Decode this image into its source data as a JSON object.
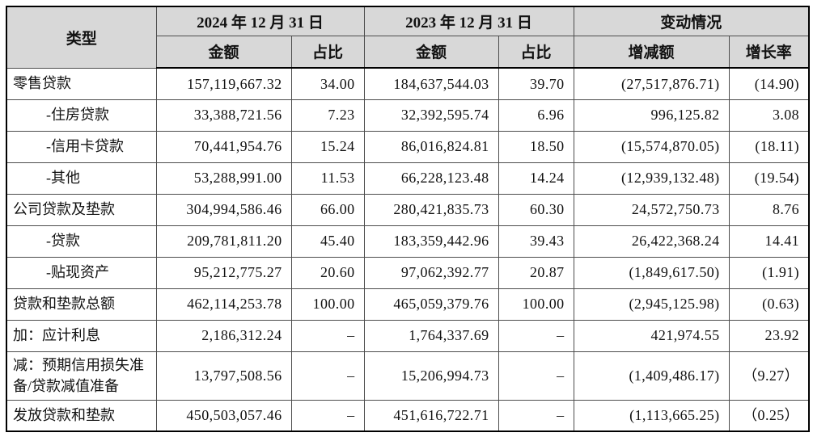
{
  "colors": {
    "header_bg": "#d8d8d8",
    "border_outer": "#000000",
    "border_inner": "#4d4d4d",
    "text": "#111111",
    "body_bg": "#ffffff"
  },
  "table": {
    "headers": {
      "type": "类型",
      "period_2024": "2024 年 12 月 31 日",
      "period_2023": "2023 年 12 月 31 日",
      "change_group": "变动情况",
      "amount": "金额",
      "ratio": "占比",
      "change_amount": "增减额",
      "growth_rate": "增长率"
    },
    "rows": [
      {
        "label": "零售贷款",
        "indent": false,
        "amount_2024": "157,119,667.32",
        "ratio_2024": "34.00",
        "amount_2023": "184,637,544.03",
        "ratio_2023": "39.70",
        "change_amount": "(27,517,876.71)",
        "growth_rate": "(14.90)"
      },
      {
        "label": "-住房贷款",
        "indent": true,
        "amount_2024": "33,388,721.56",
        "ratio_2024": "7.23",
        "amount_2023": "32,392,595.74",
        "ratio_2023": "6.96",
        "change_amount": "996,125.82",
        "growth_rate": "3.08"
      },
      {
        "label": "-信用卡贷款",
        "indent": true,
        "amount_2024": "70,441,954.76",
        "ratio_2024": "15.24",
        "amount_2023": "86,016,824.81",
        "ratio_2023": "18.50",
        "change_amount": "(15,574,870.05)",
        "growth_rate": "(18.11)"
      },
      {
        "label": "-其他",
        "indent": true,
        "amount_2024": "53,288,991.00",
        "ratio_2024": "11.53",
        "amount_2023": "66,228,123.48",
        "ratio_2023": "14.24",
        "change_amount": "(12,939,132.48)",
        "growth_rate": "(19.54)"
      },
      {
        "label": "公司贷款及垫款",
        "indent": false,
        "amount_2024": "304,994,586.46",
        "ratio_2024": "66.00",
        "amount_2023": "280,421,835.73",
        "ratio_2023": "60.30",
        "change_amount": "24,572,750.73",
        "growth_rate": "8.76"
      },
      {
        "label": "-贷款",
        "indent": true,
        "amount_2024": "209,781,811.20",
        "ratio_2024": "45.40",
        "amount_2023": "183,359,442.96",
        "ratio_2023": "39.43",
        "change_amount": "26,422,368.24",
        "growth_rate": "14.41"
      },
      {
        "label": "-贴现资产",
        "indent": true,
        "amount_2024": "95,212,775.27",
        "ratio_2024": "20.60",
        "amount_2023": "97,062,392.77",
        "ratio_2023": "20.87",
        "change_amount": "(1,849,617.50)",
        "growth_rate": "(1.91)"
      },
      {
        "label": "贷款和垫款总额",
        "indent": false,
        "amount_2024": "462,114,253.78",
        "ratio_2024": "100.00",
        "amount_2023": "465,059,379.76",
        "ratio_2023": "100.00",
        "change_amount": "(2,945,125.98)",
        "growth_rate": "(0.63)"
      },
      {
        "label": "加：应计利息",
        "indent": false,
        "amount_2024": "2,186,312.24",
        "ratio_2024": "–",
        "amount_2023": "1,764,337.69",
        "ratio_2023": "–",
        "change_amount": "421,974.55",
        "growth_rate": "23.92"
      },
      {
        "label": "减：预期信用损失准备/贷款减值准备",
        "indent": false,
        "tall": true,
        "amount_2024": "13,797,508.56",
        "ratio_2024": "–",
        "amount_2023": "15,206,994.73",
        "ratio_2023": "–",
        "change_amount": "(1,409,486.17)",
        "growth_rate": "（9.27）"
      },
      {
        "label": "发放贷款和垫款",
        "indent": false,
        "amount_2024": "450,503,057.46",
        "ratio_2024": "–",
        "amount_2023": "451,616,722.71",
        "ratio_2023": "–",
        "change_amount": "(1,113,665.25)",
        "growth_rate": "（0.25）"
      }
    ]
  }
}
